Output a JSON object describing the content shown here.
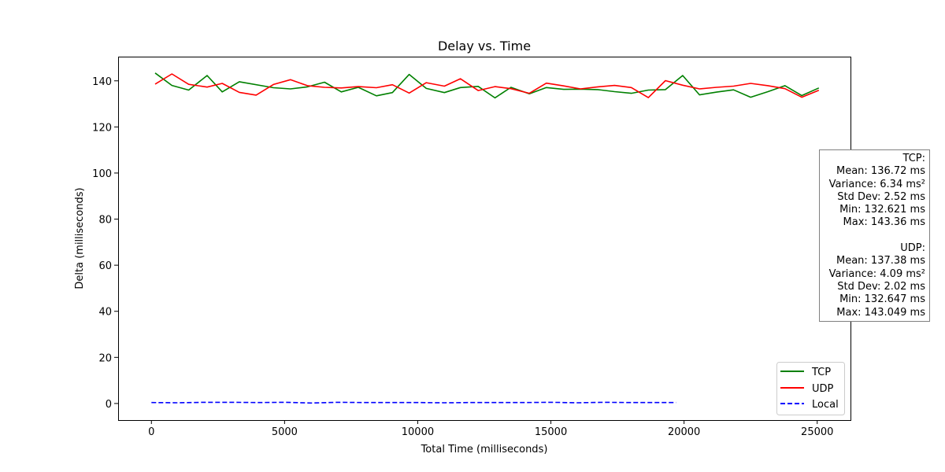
{
  "chart_data": {
    "type": "line",
    "title": "Delay vs. Time",
    "xlabel": "Total Time (milliseconds)",
    "ylabel": "Delta (milliseconds)",
    "xlim": [
      -1250,
      26250
    ],
    "ylim": [
      -7.2,
      150.5
    ],
    "xticks": [
      0,
      5000,
      10000,
      15000,
      20000,
      25000
    ],
    "xtick_labels": [
      "0",
      "5000",
      "10000",
      "15000",
      "20000",
      "25000"
    ],
    "yticks": [
      0,
      20,
      40,
      60,
      80,
      100,
      120,
      140
    ],
    "ytick_labels": [
      "0",
      "20",
      "40",
      "60",
      "80",
      "100",
      "120",
      "140"
    ],
    "grid": false,
    "legend_position": "lower-right",
    "series": [
      {
        "name": "TCP",
        "color": "#008000",
        "style": "solid",
        "x": [
          140,
          770,
          1400,
          2090,
          2660,
          3300,
          4580,
          5220,
          5860,
          6500,
          7130,
          7770,
          8450,
          9050,
          9680,
          10320,
          11000,
          11600,
          12270,
          12900,
          13500,
          14190,
          14830,
          15480,
          16110,
          16760,
          17390,
          18020,
          18660,
          19300,
          19950,
          20580,
          21220,
          21860,
          22500,
          23150,
          23790,
          24420,
          25060
        ],
        "y": [
          143.4,
          138.0,
          136.0,
          142.3,
          135.2,
          139.6,
          137.0,
          136.5,
          137.4,
          139.4,
          135.2,
          137.2,
          133.5,
          134.9,
          142.8,
          136.7,
          134.9,
          137.1,
          137.6,
          132.6,
          137.2,
          134.4,
          137.1,
          136.3,
          136.4,
          136.2,
          135.3,
          134.6,
          136.0,
          136.2,
          142.3,
          133.9,
          135.1,
          136.1,
          132.9,
          135.3,
          137.9,
          133.6,
          136.9
        ]
      },
      {
        "name": "UDP",
        "color": "#ff0000",
        "style": "solid",
        "x": [
          140,
          770,
          1400,
          2090,
          2660,
          3300,
          3930,
          4580,
          5220,
          5860,
          6500,
          7130,
          7770,
          8450,
          9050,
          9680,
          10320,
          11000,
          11600,
          12270,
          12900,
          13500,
          14190,
          14830,
          15480,
          16110,
          16760,
          17390,
          18020,
          18660,
          19300,
          19950,
          20580,
          21220,
          21860,
          22500,
          23150,
          23790,
          24420,
          25060
        ],
        "y": [
          138.6,
          143.0,
          138.5,
          137.3,
          138.9,
          135.0,
          133.8,
          138.4,
          140.5,
          137.9,
          137.2,
          136.9,
          137.5,
          137.0,
          138.3,
          134.7,
          139.2,
          137.7,
          140.9,
          135.8,
          137.5,
          136.6,
          134.6,
          139.0,
          137.8,
          136.5,
          137.4,
          138.0,
          137.1,
          132.7,
          140.1,
          138.1,
          136.5,
          137.2,
          137.7,
          138.9,
          137.9,
          136.6,
          132.9,
          135.9
        ]
      },
      {
        "name": "Local",
        "color": "#0000ff",
        "style": "dashed",
        "x": [
          0,
          1000,
          2000,
          3000,
          4000,
          5000,
          6000,
          7000,
          8000,
          9000,
          10000,
          11000,
          12000,
          13000,
          14000,
          15000,
          16000,
          17000,
          18000,
          19000,
          19700
        ],
        "y": [
          0.4,
          0.3,
          0.5,
          0.5,
          0.4,
          0.5,
          0.2,
          0.5,
          0.4,
          0.4,
          0.4,
          0.3,
          0.4,
          0.4,
          0.4,
          0.5,
          0.3,
          0.5,
          0.4,
          0.4,
          0.4
        ]
      }
    ]
  },
  "stats": {
    "tcp": {
      "header": "TCP:",
      "mean": "Mean: 136.72 ms",
      "variance": "Variance: 6.34 ms²",
      "std": "Std Dev: 2.52 ms",
      "min": "Min: 132.621 ms",
      "max": "Max: 143.36 ms"
    },
    "udp": {
      "header": "UDP:",
      "mean": "Mean: 137.38 ms",
      "variance": "Variance: 4.09 ms²",
      "std": "Std Dev: 2.02 ms",
      "min": "Min: 132.647 ms",
      "max": "Max: 143.049 ms"
    }
  }
}
